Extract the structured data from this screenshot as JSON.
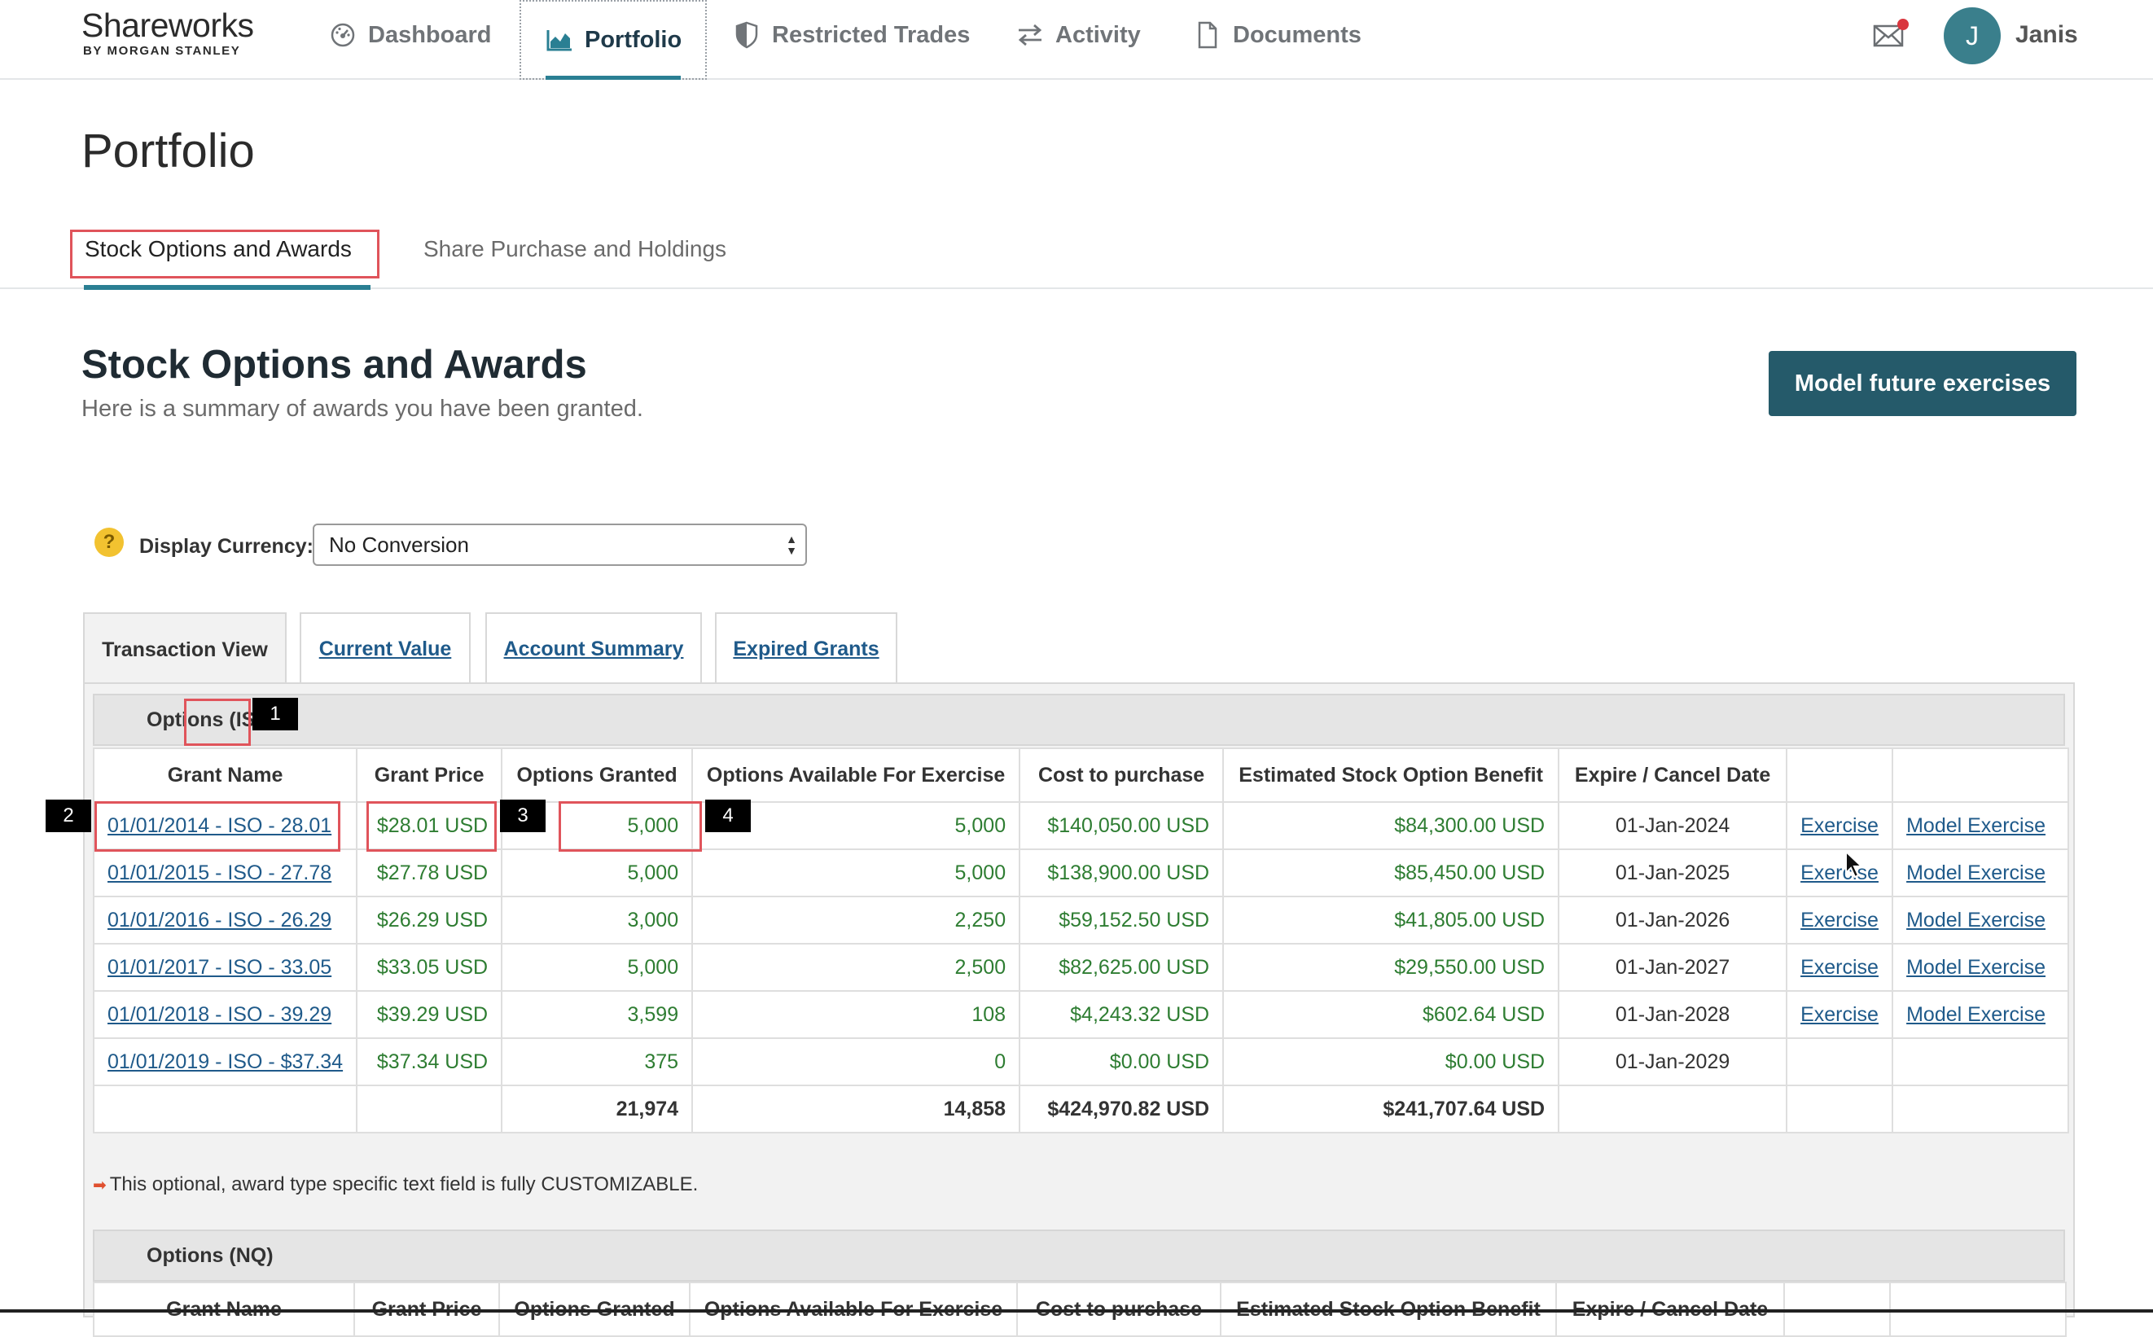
{
  "header": {
    "logo_main": "Shareworks",
    "logo_sub": "BY MORGAN STANLEY",
    "nav": [
      {
        "label": "Dashboard",
        "icon": "dashboard-icon"
      },
      {
        "label": "Portfolio",
        "icon": "chart-icon",
        "active": true
      },
      {
        "label": "Restricted Trades",
        "icon": "shield-icon"
      },
      {
        "label": "Activity",
        "icon": "swap-arrows-icon"
      },
      {
        "label": "Documents",
        "icon": "document-icon"
      }
    ],
    "avatar_initial": "J",
    "user_name": "Janis"
  },
  "page": {
    "title": "Portfolio",
    "subtabs": [
      "Stock Options and Awards",
      "Share Purchase and Holdings"
    ]
  },
  "section": {
    "title": "Stock Options and Awards",
    "subtitle": "Here is a summary of awards you have been granted.",
    "model_button": "Model future exercises"
  },
  "currency": {
    "help": "?",
    "label": "Display Currency:",
    "value": "No Conversion"
  },
  "panel_tabs": [
    "Transaction View",
    "Current Value",
    "Account Summary",
    "Expired Grants"
  ],
  "iso": {
    "group_label": "Options (ISO)",
    "columns": [
      "Grant Name",
      "Grant Price",
      "Options Granted",
      "Options Available For Exercise",
      "Cost to purchase",
      "Estimated Stock Option Benefit",
      "Expire / Cancel Date",
      "",
      ""
    ],
    "rows": [
      {
        "name": "01/01/2014 - ISO - 28.01",
        "price": "$28.01 USD",
        "granted": "5,000",
        "available": "5,000",
        "cost": "$140,050.00 USD",
        "benefit": "$84,300.00 USD",
        "expire": "01-Jan-2024",
        "exercise": "Exercise",
        "model": "Model Exercise"
      },
      {
        "name": "01/01/2015 - ISO - 27.78",
        "price": "$27.78 USD",
        "granted": "5,000",
        "available": "5,000",
        "cost": "$138,900.00 USD",
        "benefit": "$85,450.00 USD",
        "expire": "01-Jan-2025",
        "exercise": "Exercise",
        "model": "Model Exercise"
      },
      {
        "name": "01/01/2016 - ISO - 26.29",
        "price": "$26.29 USD",
        "granted": "3,000",
        "available": "2,250",
        "cost": "$59,152.50 USD",
        "benefit": "$41,805.00 USD",
        "expire": "01-Jan-2026",
        "exercise": "Exercise",
        "model": "Model Exercise"
      },
      {
        "name": "01/01/2017 - ISO - 33.05",
        "price": "$33.05 USD",
        "granted": "5,000",
        "available": "2,500",
        "cost": "$82,625.00 USD",
        "benefit": "$29,550.00 USD",
        "expire": "01-Jan-2027",
        "exercise": "Exercise",
        "model": "Model Exercise"
      },
      {
        "name": "01/01/2018 - ISO - 39.29",
        "price": "$39.29 USD",
        "granted": "3,599",
        "available": "108",
        "cost": "$4,243.32 USD",
        "benefit": "$602.64 USD",
        "expire": "01-Jan-2028",
        "exercise": "Exercise",
        "model": "Model Exercise"
      },
      {
        "name": "01/01/2019 - ISO - $37.34",
        "price": "$37.34 USD",
        "granted": "375",
        "available": "0",
        "cost": "$0.00 USD",
        "benefit": "$0.00 USD",
        "expire": "01-Jan-2029",
        "exercise": "",
        "model": ""
      }
    ],
    "totals": {
      "granted": "21,974",
      "available": "14,858",
      "cost": "$424,970.82 USD",
      "benefit": "$241,707.64 USD"
    }
  },
  "note": "This optional, award type specific text field is fully CUSTOMIZABLE.",
  "nq": {
    "group_label": "Options (NQ)",
    "columns": [
      "Grant Name",
      "Grant Price",
      "Options Granted",
      "Options Available For Exercise",
      "Cost to purchase",
      "Estimated Stock Option Benefit",
      "Expire / Cancel Date",
      "",
      ""
    ]
  },
  "markers": [
    "1",
    "2",
    "3",
    "4"
  ],
  "colors": {
    "accent": "#2a7f93",
    "button": "#255a6a",
    "positive": "#2e7d32",
    "link": "#1f5a8a",
    "highlight": "#e0545b"
  }
}
